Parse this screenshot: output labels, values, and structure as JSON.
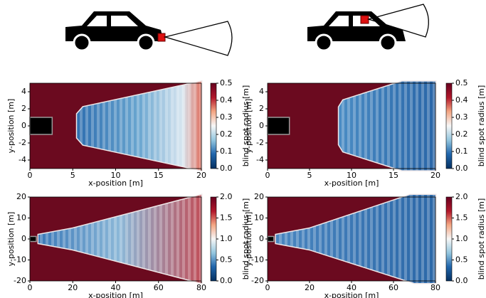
{
  "chart_data": [
    {
      "type": "heatmap",
      "xlabel": "x-position [m]",
      "ylabel": "y-position [m]",
      "xlim": [
        0,
        20
      ],
      "ylim": [
        -5,
        5
      ],
      "xticks": [
        0,
        5,
        10,
        15,
        20
      ],
      "yticks": [
        -4,
        -2,
        0,
        2,
        4
      ],
      "colorbar": {
        "label": "blind spot radius [m]",
        "lim": [
          0,
          0.5
        ],
        "ticks": [
          {
            "value": 0,
            "label": "0.0"
          },
          0.1,
          0.2,
          0.3,
          0.4,
          0.5
        ]
      }
    },
    {
      "type": "heatmap",
      "xlabel": "x-position [m]",
      "ylabel": "y-position [m]",
      "xlim": [
        0,
        20
      ],
      "ylim": [
        -5,
        5
      ],
      "xticks": [
        0,
        5,
        10,
        15,
        20
      ],
      "yticks": [
        -4,
        -2,
        0,
        2,
        4
      ],
      "colorbar": {
        "label": "blind spot radius [m]",
        "lim": [
          0,
          0.5
        ],
        "ticks": [
          {
            "value": 0,
            "label": "0.0"
          },
          0.1,
          0.2,
          0.3,
          0.4,
          0.5
        ]
      }
    },
    {
      "type": "heatmap",
      "xlabel": "x-position [m]",
      "ylabel": "y-position [m]",
      "xlim": [
        0,
        80
      ],
      "ylim": [
        -20,
        20
      ],
      "xticks": [
        0,
        20,
        40,
        60,
        80
      ],
      "yticks": [
        -20,
        -10,
        0,
        10,
        20
      ],
      "colorbar": {
        "label": "blind spot radius [m]",
        "lim": [
          0,
          2
        ],
        "ticks": [
          {
            "value": 0,
            "label": "0.0"
          },
          0.5,
          {
            "value": 1,
            "label": "1.0"
          },
          1.5,
          {
            "value": 2,
            "label": "2.0"
          }
        ]
      }
    },
    {
      "type": "heatmap",
      "xlabel": "x-position [m]",
      "ylabel": "y-position [m]",
      "xlim": [
        0,
        80
      ],
      "ylim": [
        -20,
        20
      ],
      "xticks": [
        0,
        20,
        40,
        60,
        80
      ],
      "yticks": [
        -20,
        -10,
        0,
        10,
        20
      ],
      "colorbar": {
        "label": "blind spot radius [m]",
        "lim": [
          0,
          2
        ],
        "ticks": [
          {
            "value": 0,
            "label": "0.0"
          },
          0.5,
          {
            "value": 1,
            "label": "1.0"
          },
          1.5,
          {
            "value": 2,
            "label": "2.0"
          }
        ]
      }
    }
  ]
}
